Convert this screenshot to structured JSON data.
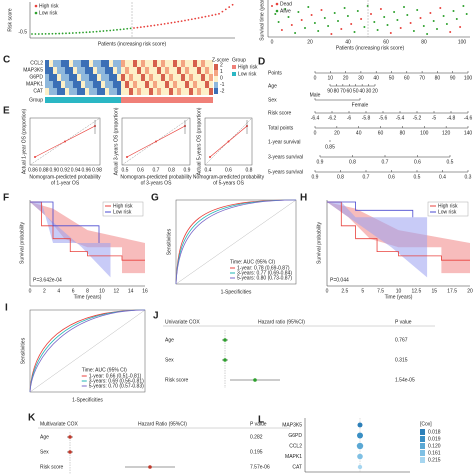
{
  "risk_plot": {
    "legend": [
      "High risk",
      "Low risk"
    ],
    "y_label": "Risk score",
    "y_tick": "-0.5",
    "x_label": "Patients (increasing risk score)"
  },
  "status_plot": {
    "legend": [
      "Dead",
      "Alive"
    ],
    "y_label": "Survival time (years)",
    "x_ticks": [
      "0",
      "20",
      "40",
      "60",
      "80",
      "100"
    ],
    "x_label": "Patients (increasing risk score)"
  },
  "heatmap": {
    "label": "C",
    "genes": [
      "CCL2",
      "MAP3K5",
      "G6PD",
      "MAPK1",
      "CAT"
    ],
    "group_row": "Group",
    "legend_title": "Z-score",
    "scale": [
      "2",
      "1",
      "0",
      "-1",
      "-2"
    ],
    "group_title": "Group",
    "groups": [
      "High risk",
      "Low risk"
    ]
  },
  "nomogram": {
    "label": "D",
    "rows": [
      {
        "name": "Points",
        "ticks": [
          "0",
          "10",
          "20",
          "30",
          "40",
          "50",
          "60",
          "70",
          "80",
          "90",
          "100"
        ]
      },
      {
        "name": "Age",
        "ticks": [
          "90",
          "80",
          "70",
          "60",
          "50",
          "40",
          "30",
          "20"
        ]
      },
      {
        "name": "Sex",
        "ticks": [
          "Male",
          "Female"
        ]
      },
      {
        "name": "Risk score",
        "ticks": [
          "-6.4",
          "-6.2",
          "-6",
          "-5.8",
          "-5.6",
          "-5.4",
          "-5.2",
          "-5",
          "-4.8",
          "-4.6"
        ]
      },
      {
        "name": "Total points",
        "ticks": [
          "0",
          "20",
          "40",
          "60",
          "80",
          "100",
          "120",
          "140"
        ]
      },
      {
        "name": "1-year survival",
        "ticks": [
          "0.85"
        ]
      },
      {
        "name": "3-years survival",
        "ticks": [
          "0.9",
          "0.8",
          "0.7",
          "0.6",
          "0.5"
        ]
      },
      {
        "name": "5-years survival",
        "ticks": [
          "0.9",
          "0.8",
          "0.7",
          "0.6",
          "0.5",
          "0.4",
          "0.3"
        ]
      }
    ]
  },
  "calibration": {
    "label": "E",
    "plots": [
      {
        "y_label": "Actual 1-year OS (proportion)",
        "x_label": [
          "Nomogram-predicted probability",
          "of 1-year OS"
        ],
        "x_ticks": [
          "0.86",
          "0.88",
          "0.90",
          "0.92",
          "0.94",
          "0.96",
          "0.98"
        ]
      },
      {
        "y_label": "Actual 3-years OS (proportion)",
        "x_label": [
          "Nomogram-predicted probability",
          "of 3-years OS"
        ],
        "x_ticks": [
          "0.5",
          "0.6",
          "0.7",
          "0.8",
          "0.9"
        ]
      },
      {
        "y_label": "Actual 5-years OS (proportion)",
        "x_label": [
          "Nomogram-predicted probability",
          "of 5-years OS"
        ],
        "x_ticks": [
          "0.4",
          "0.6",
          "0.8"
        ]
      }
    ]
  },
  "km_train": {
    "label": "F",
    "legend": [
      "High risk",
      "Low risk"
    ],
    "y_label": "Survival probability",
    "x_label": "Time (years)",
    "x_ticks": [
      "0",
      "2",
      "4",
      "6",
      "8",
      "10",
      "12",
      "14",
      "16"
    ],
    "p_value": "P=3.642e-04"
  },
  "roc_train": {
    "label": "G",
    "y_label": "Sensitivities",
    "x_label": "1-Specificities",
    "legend_title": "Time: AUC (95% CI)",
    "legend": [
      "1-year: 0.78 (0.69-0.87)",
      "3-years: 0.77 (0.69-0.84)",
      "5-years: 0.80 (0.73-0.87)"
    ]
  },
  "km_test": {
    "label": "H",
    "legend": [
      "High risk",
      "Low risk"
    ],
    "y_label": "Survival probability",
    "x_label": "Time (years)",
    "x_ticks": [
      "0",
      "2.5",
      "5",
      "7.5",
      "10",
      "12.5",
      "15",
      "17.5",
      "20"
    ],
    "p_value": "P=0.044"
  },
  "roc_test": {
    "label": "I",
    "y_label": "Sensitivities",
    "x_label": "1-Specificities",
    "legend_title": "Time: AUC (95% CI)",
    "legend": [
      "1-year: 0.66 (0.51-0.81)",
      "3-years: 0.69 (0.56-0.81)",
      "5-years: 0.70 (0.57-0.83)"
    ]
  },
  "univariate": {
    "label": "J",
    "header": [
      "Univariate COX",
      "Hazard ratio (95%CI)",
      "P value"
    ],
    "rows": [
      [
        "Age",
        "0.767"
      ],
      [
        "Sex",
        "0.315"
      ],
      [
        "Risk score",
        "1.54e-05"
      ]
    ]
  },
  "multivariate": {
    "label": "K",
    "header": [
      "Multivariate COX",
      "Hazard Ratio (95%CI)",
      "P value"
    ],
    "rows": [
      [
        "Age",
        "0.282"
      ],
      [
        "Sex",
        "0.195"
      ],
      [
        "Risk score",
        "7.57e-06"
      ]
    ]
  },
  "dotplot": {
    "label": "L",
    "genes": [
      "MAP3K5",
      "G6PD",
      "CCL2",
      "MAPK1",
      "CAT"
    ],
    "legend_title": "[Cox]",
    "legend": [
      "0.018",
      "0.019",
      "0.120",
      "0.161",
      "0.215"
    ]
  }
}
